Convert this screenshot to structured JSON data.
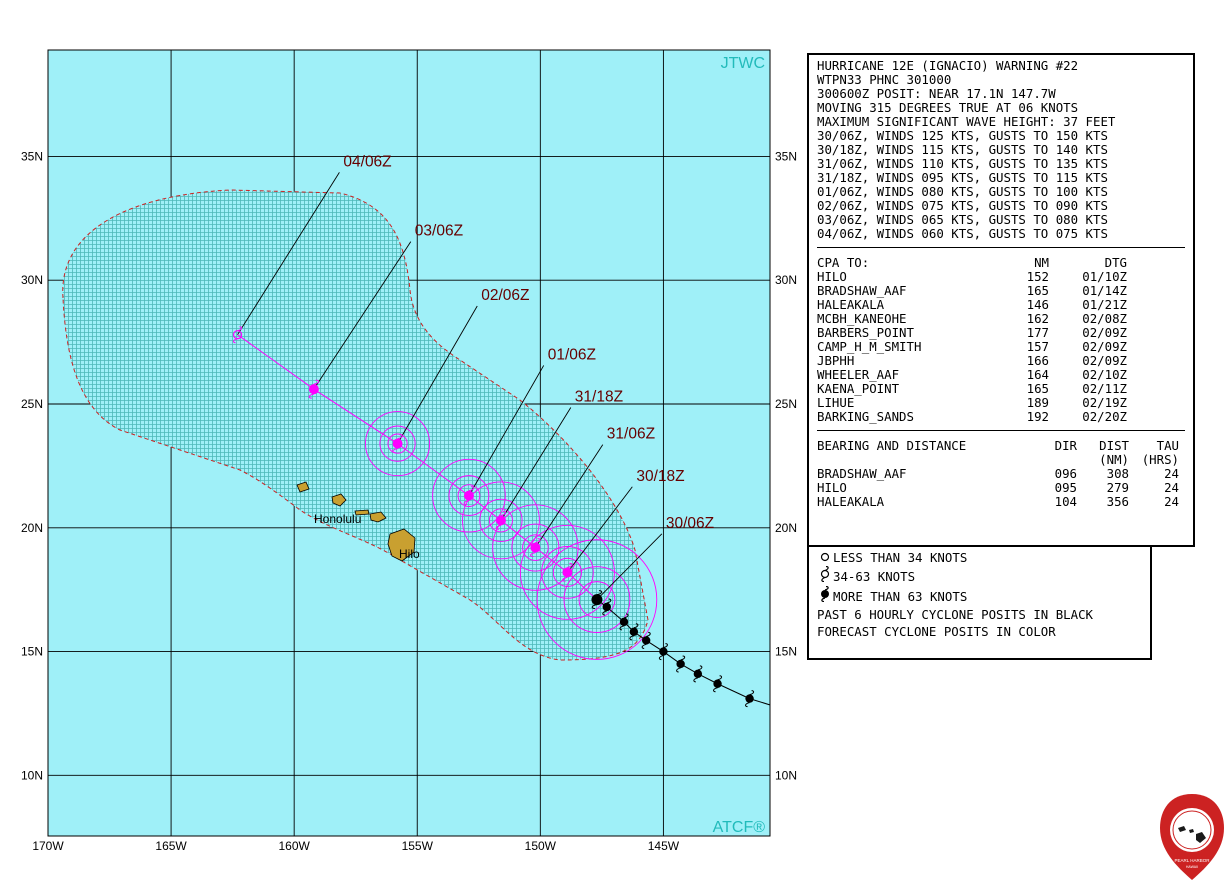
{
  "map": {
    "watermark_top": "JTWC",
    "watermark_bottom": "ATCF®",
    "lon_labels": [
      "170W",
      "165W",
      "160W",
      "155W",
      "150W",
      "145W"
    ],
    "lat_labels_left": [
      "35N",
      "30N",
      "25N",
      "20N",
      "15N",
      "10N"
    ],
    "lat_labels_right": [
      "35N",
      "30N",
      "25N",
      "20N",
      "15N",
      "10N"
    ],
    "land_labels": [
      "Honolulu",
      "Hilo"
    ],
    "colors": {
      "ocean": "#9ff0f8",
      "land": "#c9a030",
      "danger_area": "#5fc9c4",
      "track_forecast": "#ff00ff",
      "track_past": "#000000",
      "label_text": "#660000",
      "border_red": "#cc2222"
    },
    "past_positions": [
      {
        "lat": 16.8,
        "lon": -147.3
      },
      {
        "lat": 16.2,
        "lon": -146.6
      },
      {
        "lat": 15.8,
        "lon": -146.2
      },
      {
        "lat": 15.45,
        "lon": -145.7
      },
      {
        "lat": 15.0,
        "lon": -145.0
      },
      {
        "lat": 14.5,
        "lon": -144.3
      },
      {
        "lat": 14.1,
        "lon": -143.6
      },
      {
        "lat": 13.7,
        "lon": -142.8
      },
      {
        "lat": 13.1,
        "lon": -141.5
      },
      {
        "lat": 12.7,
        "lon": -140.2
      }
    ],
    "current_position": {
      "lat": 17.1,
      "lon": -147.7
    },
    "forecast_points": [
      {
        "label": "30/06Z",
        "lat": 17.1,
        "lon": -147.7,
        "intensity": "more_than_63",
        "label_lat": 20.0,
        "label_lon": -144.9
      },
      {
        "label": "30/18Z",
        "lat": 18.2,
        "lon": -148.9,
        "intensity": "more_than_63",
        "label_lat": 21.9,
        "label_lon": -146.1
      },
      {
        "label": "31/06Z",
        "lat": 19.2,
        "lon": -150.2,
        "intensity": "more_than_63",
        "label_lat": 23.6,
        "label_lon": -147.3
      },
      {
        "label": "31/18Z",
        "lat": 20.3,
        "lon": -151.6,
        "intensity": "more_than_63",
        "label_lat": 25.1,
        "label_lon": -148.6
      },
      {
        "label": "01/06Z",
        "lat": 21.3,
        "lon": -152.9,
        "intensity": "more_than_63",
        "label_lat": 26.8,
        "label_lon": -149.7
      },
      {
        "label": "02/06Z",
        "lat": 23.4,
        "lon": -155.8,
        "intensity": "more_than_63",
        "label_lat": 29.2,
        "label_lon": -152.4
      },
      {
        "label": "03/06Z",
        "lat": 25.6,
        "lon": -159.2,
        "intensity": "34_to_63",
        "label_lat": 31.8,
        "label_lon": -155.1
      },
      {
        "label": "04/06Z",
        "lat": 27.8,
        "lon": -162.3,
        "intensity": "less_than_34",
        "label_lat": 34.6,
        "label_lon": -158.0
      }
    ],
    "wind_radii_nm": [
      140,
      110,
      100,
      90,
      85,
      75
    ]
  },
  "warning": {
    "title": "HURRICANE 12E (IGNACIO) WARNING #22",
    "lines": [
      "WTPN33 PHNC 301000",
      "300600Z POSIT: NEAR 17.1N 147.7W",
      "MOVING 315 DEGREES TRUE AT 06 KNOTS",
      "MAXIMUM SIGNIFICANT WAVE HEIGHT: 37 FEET",
      "30/06Z, WINDS 125 KTS, GUSTS TO 150 KTS",
      "30/18Z, WINDS 115 KTS, GUSTS TO 140 KTS",
      "31/06Z, WINDS 110 KTS, GUSTS TO 135 KTS",
      "31/18Z, WINDS 095 KTS, GUSTS TO 115 KTS",
      "01/06Z, WINDS 080 KTS, GUSTS TO 100 KTS",
      "02/06Z, WINDS 075 KTS, GUSTS TO 090 KTS",
      "03/06Z, WINDS 065 KTS, GUSTS TO 080 KTS",
      "04/06Z, WINDS 060 KTS, GUSTS TO 075 KTS"
    ]
  },
  "cpa": {
    "header": [
      "CPA TO:",
      "NM",
      "DTG"
    ],
    "rows": [
      [
        "HILO",
        "152",
        "01/10Z"
      ],
      [
        "BRADSHAW_AAF",
        "165",
        "01/14Z"
      ],
      [
        "HALEAKALA",
        "146",
        "01/21Z"
      ],
      [
        "MCBH_KANEOHE",
        "162",
        "02/08Z"
      ],
      [
        "BARBERS_POINT",
        "177",
        "02/09Z"
      ],
      [
        "CAMP_H_M_SMITH",
        "157",
        "02/09Z"
      ],
      [
        "JBPHH",
        "166",
        "02/09Z"
      ],
      [
        "WHEELER_AAF",
        "164",
        "02/10Z"
      ],
      [
        "KAENA_POINT",
        "165",
        "02/11Z"
      ],
      [
        "LIHUE",
        "189",
        "02/19Z"
      ],
      [
        "BARKING_SANDS",
        "192",
        "02/20Z"
      ]
    ]
  },
  "bearing": {
    "header1": [
      "BEARING AND DISTANCE",
      "DIR",
      "DIST",
      "TAU"
    ],
    "header2": [
      "",
      "",
      "(NM)",
      "(HRS)"
    ],
    "rows": [
      [
        "BRADSHAW_AAF",
        "096",
        "308",
        "24"
      ],
      [
        "HILO",
        "095",
        "279",
        "24"
      ],
      [
        "HALEAKALA",
        "104",
        "356",
        "24"
      ]
    ]
  },
  "legend": {
    "items": [
      {
        "icon": "open-circle-icon",
        "text": "LESS THAN 34 KNOTS"
      },
      {
        "icon": "tropical-storm-symbol-icon",
        "text": "34-63 KNOTS"
      },
      {
        "icon": "hurricane-symbol-icon",
        "text": "MORE THAN 63 KNOTS"
      }
    ],
    "note1": "PAST 6 HOURLY CYCLONE POSITS IN BLACK",
    "note2": "FORECAST CYCLONE POSITS IN COLOR"
  },
  "logo": {
    "ring_text": "JOINT TYPHOON WARNING CENTER",
    "bottom_text": "PEARL HARBOR",
    "sub_text": "HAWAII",
    "color": "#cc2222"
  }
}
